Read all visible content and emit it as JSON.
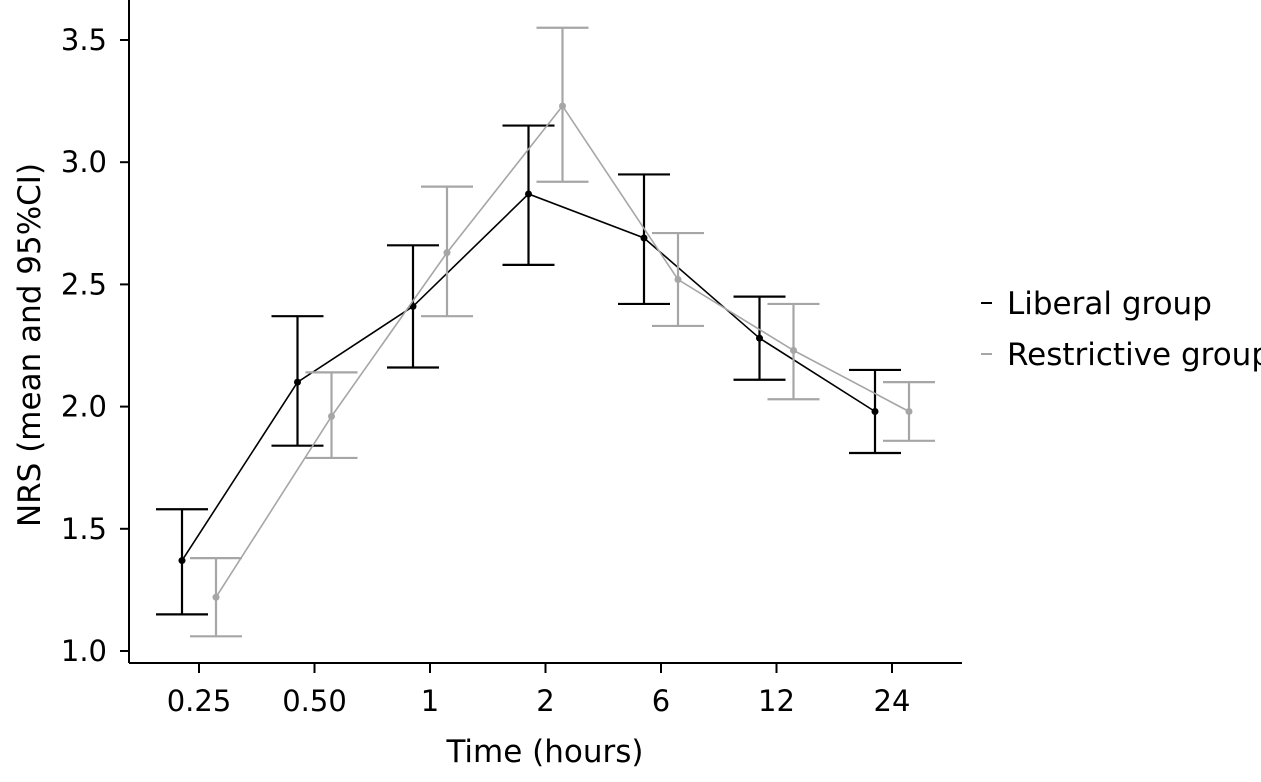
{
  "chart_data": {
    "type": "line",
    "title": "",
    "xlabel": "Time (hours)",
    "ylabel": "NRS (mean and 95%CI)",
    "categories": [
      "0.25",
      "0.50",
      "1",
      "2",
      "6",
      "12",
      "24"
    ],
    "yticks": [
      "1.0",
      "1.5",
      "2.0",
      "2.5",
      "3.0",
      "3.5"
    ],
    "ylim": [
      1.0,
      3.65
    ],
    "grid": false,
    "legend_position": "right",
    "series": [
      {
        "name": "Liberal group",
        "color": "#000000",
        "values": [
          1.37,
          2.1,
          2.41,
          2.87,
          2.69,
          2.28,
          1.98
        ],
        "ci_low": [
          1.15,
          1.84,
          2.16,
          2.58,
          2.42,
          2.11,
          1.81
        ],
        "ci_high": [
          1.58,
          2.37,
          2.66,
          3.15,
          2.95,
          2.45,
          2.15
        ]
      },
      {
        "name": "Restrictive group",
        "color": "#a6a6a6",
        "values": [
          1.22,
          1.96,
          2.63,
          3.23,
          2.52,
          2.23,
          1.98
        ],
        "ci_low": [
          1.06,
          1.79,
          2.37,
          2.92,
          2.33,
          2.03,
          1.86
        ],
        "ci_high": [
          1.38,
          2.14,
          2.9,
          3.55,
          2.71,
          2.42,
          2.1
        ]
      }
    ]
  }
}
